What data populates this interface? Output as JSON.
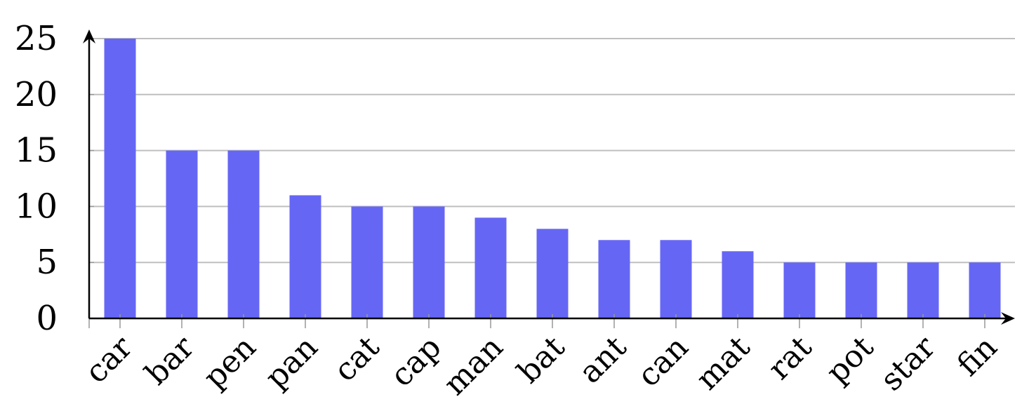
{
  "chart_data": {
    "type": "bar",
    "categories": [
      "car",
      "bar",
      "pen",
      "pan",
      "cat",
      "cap",
      "man",
      "bat",
      "ant",
      "can",
      "mat",
      "rat",
      "pot",
      "star",
      "fin"
    ],
    "values": [
      25,
      15,
      15,
      11,
      10,
      10,
      9,
      8,
      7,
      7,
      6,
      5,
      5,
      5,
      5
    ],
    "ylim": [
      0,
      25
    ],
    "yticks": [
      0,
      5,
      10,
      15,
      20,
      25
    ],
    "ytick_labels": [
      "0",
      "5",
      "10",
      "15",
      "20",
      "25"
    ],
    "grid": true,
    "legend": "none",
    "title": "",
    "xlabel": "",
    "ylabel": ""
  },
  "colors": {
    "bar": "#6666f5",
    "grid": "#bfbfbf",
    "axis": "#000000",
    "tick": "#999999"
  }
}
